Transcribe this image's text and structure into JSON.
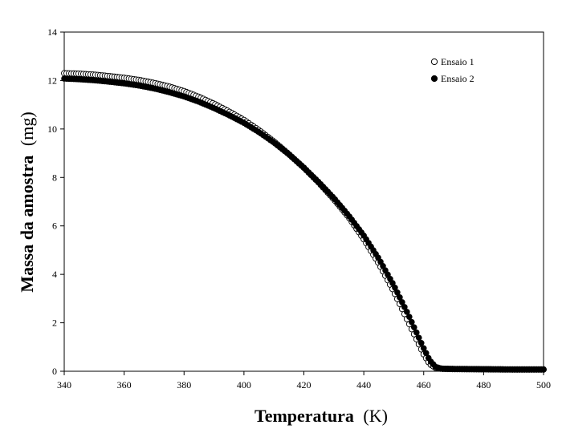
{
  "chart_data": {
    "type": "scatter",
    "xlabel": "Temperatura",
    "xlabel_unit": "(K)",
    "ylabel": "Massa da amostra",
    "ylabel_unit": "(mg)",
    "xlim": [
      340,
      500
    ],
    "ylim": [
      0,
      14
    ],
    "x_ticks": [
      340,
      360,
      380,
      400,
      420,
      440,
      460,
      480,
      500
    ],
    "y_ticks": [
      0,
      2,
      4,
      6,
      8,
      10,
      12,
      14
    ],
    "grid": false,
    "legend_position": "top-right",
    "series": [
      {
        "name": "Ensaio 1",
        "marker": "open-circle",
        "color": "#000000",
        "x": [
          340,
          345,
          350,
          355,
          360,
          365,
          370,
          375,
          380,
          385,
          390,
          395,
          400,
          405,
          410,
          415,
          420,
          425,
          430,
          435,
          440,
          445,
          450,
          455,
          460,
          462,
          464,
          466,
          470,
          480,
          490,
          500
        ],
        "y": [
          12.3,
          12.28,
          12.24,
          12.18,
          12.11,
          12.02,
          11.9,
          11.75,
          11.56,
          11.32,
          11.04,
          10.72,
          10.37,
          9.95,
          9.48,
          8.96,
          8.4,
          7.78,
          7.1,
          6.35,
          5.45,
          4.45,
          3.3,
          2.0,
          0.7,
          0.3,
          0.14,
          0.1,
          0.09,
          0.08,
          0.07,
          0.07
        ]
      },
      {
        "name": "Ensaio 2",
        "marker": "filled-circle",
        "color": "#000000",
        "x": [
          340,
          345,
          350,
          355,
          360,
          365,
          370,
          375,
          380,
          385,
          390,
          395,
          400,
          405,
          410,
          415,
          420,
          425,
          430,
          435,
          440,
          445,
          450,
          455,
          460,
          462,
          464,
          466,
          470,
          480,
          490,
          500
        ],
        "y": [
          12.08,
          12.05,
          12.01,
          11.95,
          11.88,
          11.79,
          11.67,
          11.52,
          11.34,
          11.12,
          10.86,
          10.57,
          10.25,
          9.87,
          9.44,
          8.95,
          8.4,
          7.8,
          7.15,
          6.42,
          5.6,
          4.65,
          3.55,
          2.3,
          0.95,
          0.45,
          0.18,
          0.11,
          0.1,
          0.09,
          0.08,
          0.08
        ]
      }
    ]
  }
}
